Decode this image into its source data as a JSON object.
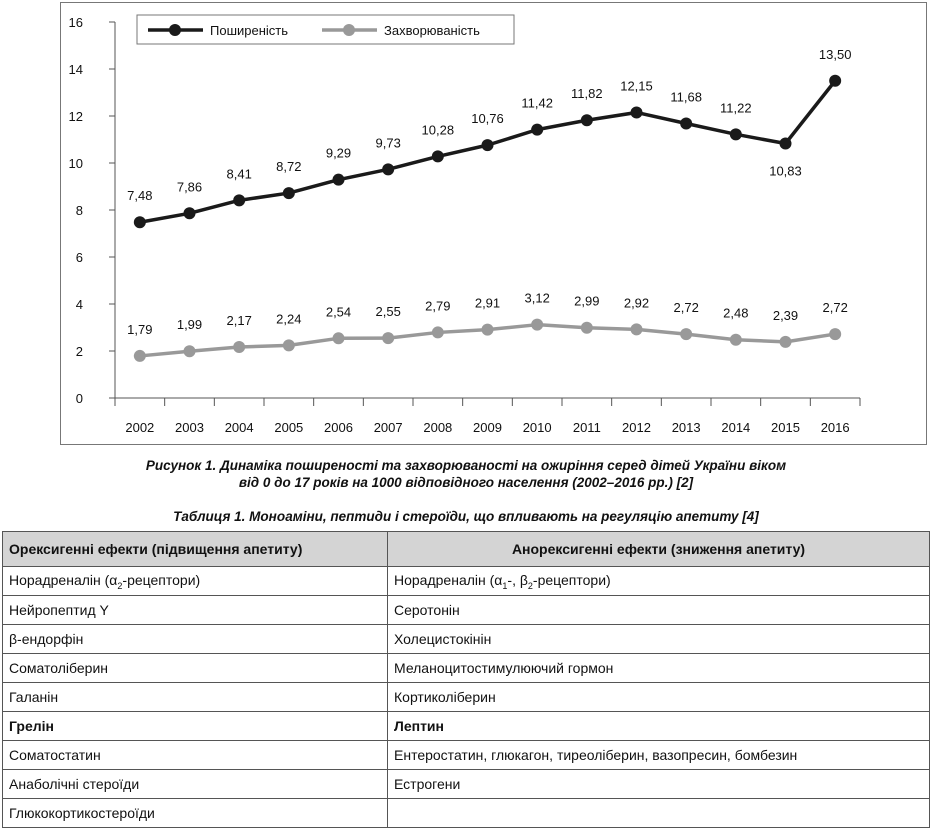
{
  "chart_data": {
    "type": "line",
    "categories": [
      "2002",
      "2003",
      "2004",
      "2005",
      "2006",
      "2007",
      "2008",
      "2009",
      "2010",
      "2011",
      "2012",
      "2013",
      "2014",
      "2015",
      "2016"
    ],
    "ylim": [
      0,
      16
    ],
    "y_ticks": [
      "0",
      "2",
      "4",
      "6",
      "8",
      "10",
      "12",
      "14",
      "16"
    ],
    "legend_position": "top-left",
    "series": [
      {
        "name": "Поширеність",
        "color": "#1a1a1a",
        "values": [
          7.48,
          7.86,
          8.41,
          8.72,
          9.29,
          9.73,
          10.28,
          10.76,
          11.42,
          11.82,
          12.15,
          11.68,
          11.22,
          10.83,
          13.5
        ],
        "labels": [
          "7,48",
          "7,86",
          "8,41",
          "8,72",
          "9,29",
          "9,73",
          "10,28",
          "10,76",
          "11,42",
          "11,82",
          "12,15",
          "11,68",
          "11,22",
          "10,83",
          "13,50"
        ]
      },
      {
        "name": "Захворюваність",
        "color": "#999999",
        "values": [
          1.79,
          1.99,
          2.17,
          2.24,
          2.54,
          2.55,
          2.79,
          2.91,
          3.12,
          2.99,
          2.92,
          2.72,
          2.48,
          2.39,
          2.72
        ],
        "labels": [
          "1,79",
          "1,99",
          "2,17",
          "2,24",
          "2,54",
          "2,55",
          "2,79",
          "2,91",
          "3,12",
          "2,99",
          "2,92",
          "2,72",
          "2,48",
          "2,39",
          "2,72"
        ]
      }
    ]
  },
  "figure_caption": {
    "line1": "Рисунок 1.  Динаміка поширеності та захворюваності на ожиріння серед дітей України віком",
    "line2": "від 0 до 17 років на 1000 відповідного населення (2002–2016 рр.) [2]"
  },
  "table_caption": "Таблиця 1.  Моноаміни, пептиди і стероїди, що впливають на регуляцію апетиту [4]",
  "table": {
    "headers": [
      "Орексигенні ефекти (підвищення апетиту)",
      "Анорексигенні ефекти (зниження апетиту)"
    ],
    "rows": [
      {
        "left": "Норадреналін (α2-рецептори)",
        "right": "Норадреналін (α1-, β2-рецептори)"
      },
      {
        "left": "Нейропептид Y",
        "right": "Серотонін"
      },
      {
        "left": "β-ендорфін",
        "right": "Холецистокінін"
      },
      {
        "left": "Соматоліберин",
        "right": "Меланоцитостимулюючий гормон"
      },
      {
        "left": "Галанін",
        "right": "Кортиколіберин"
      },
      {
        "left": "Грелін",
        "right": "Лептин",
        "bold": true
      },
      {
        "left": "Соматостатин",
        "right": "Ентеростатин, глюкагон, тиреоліберин, вазопресин, бомбезин"
      },
      {
        "left": "Анаболічні стероїди",
        "right": "Естрогени"
      },
      {
        "left": "Глюкокортикостероїди",
        "right": ""
      }
    ]
  }
}
